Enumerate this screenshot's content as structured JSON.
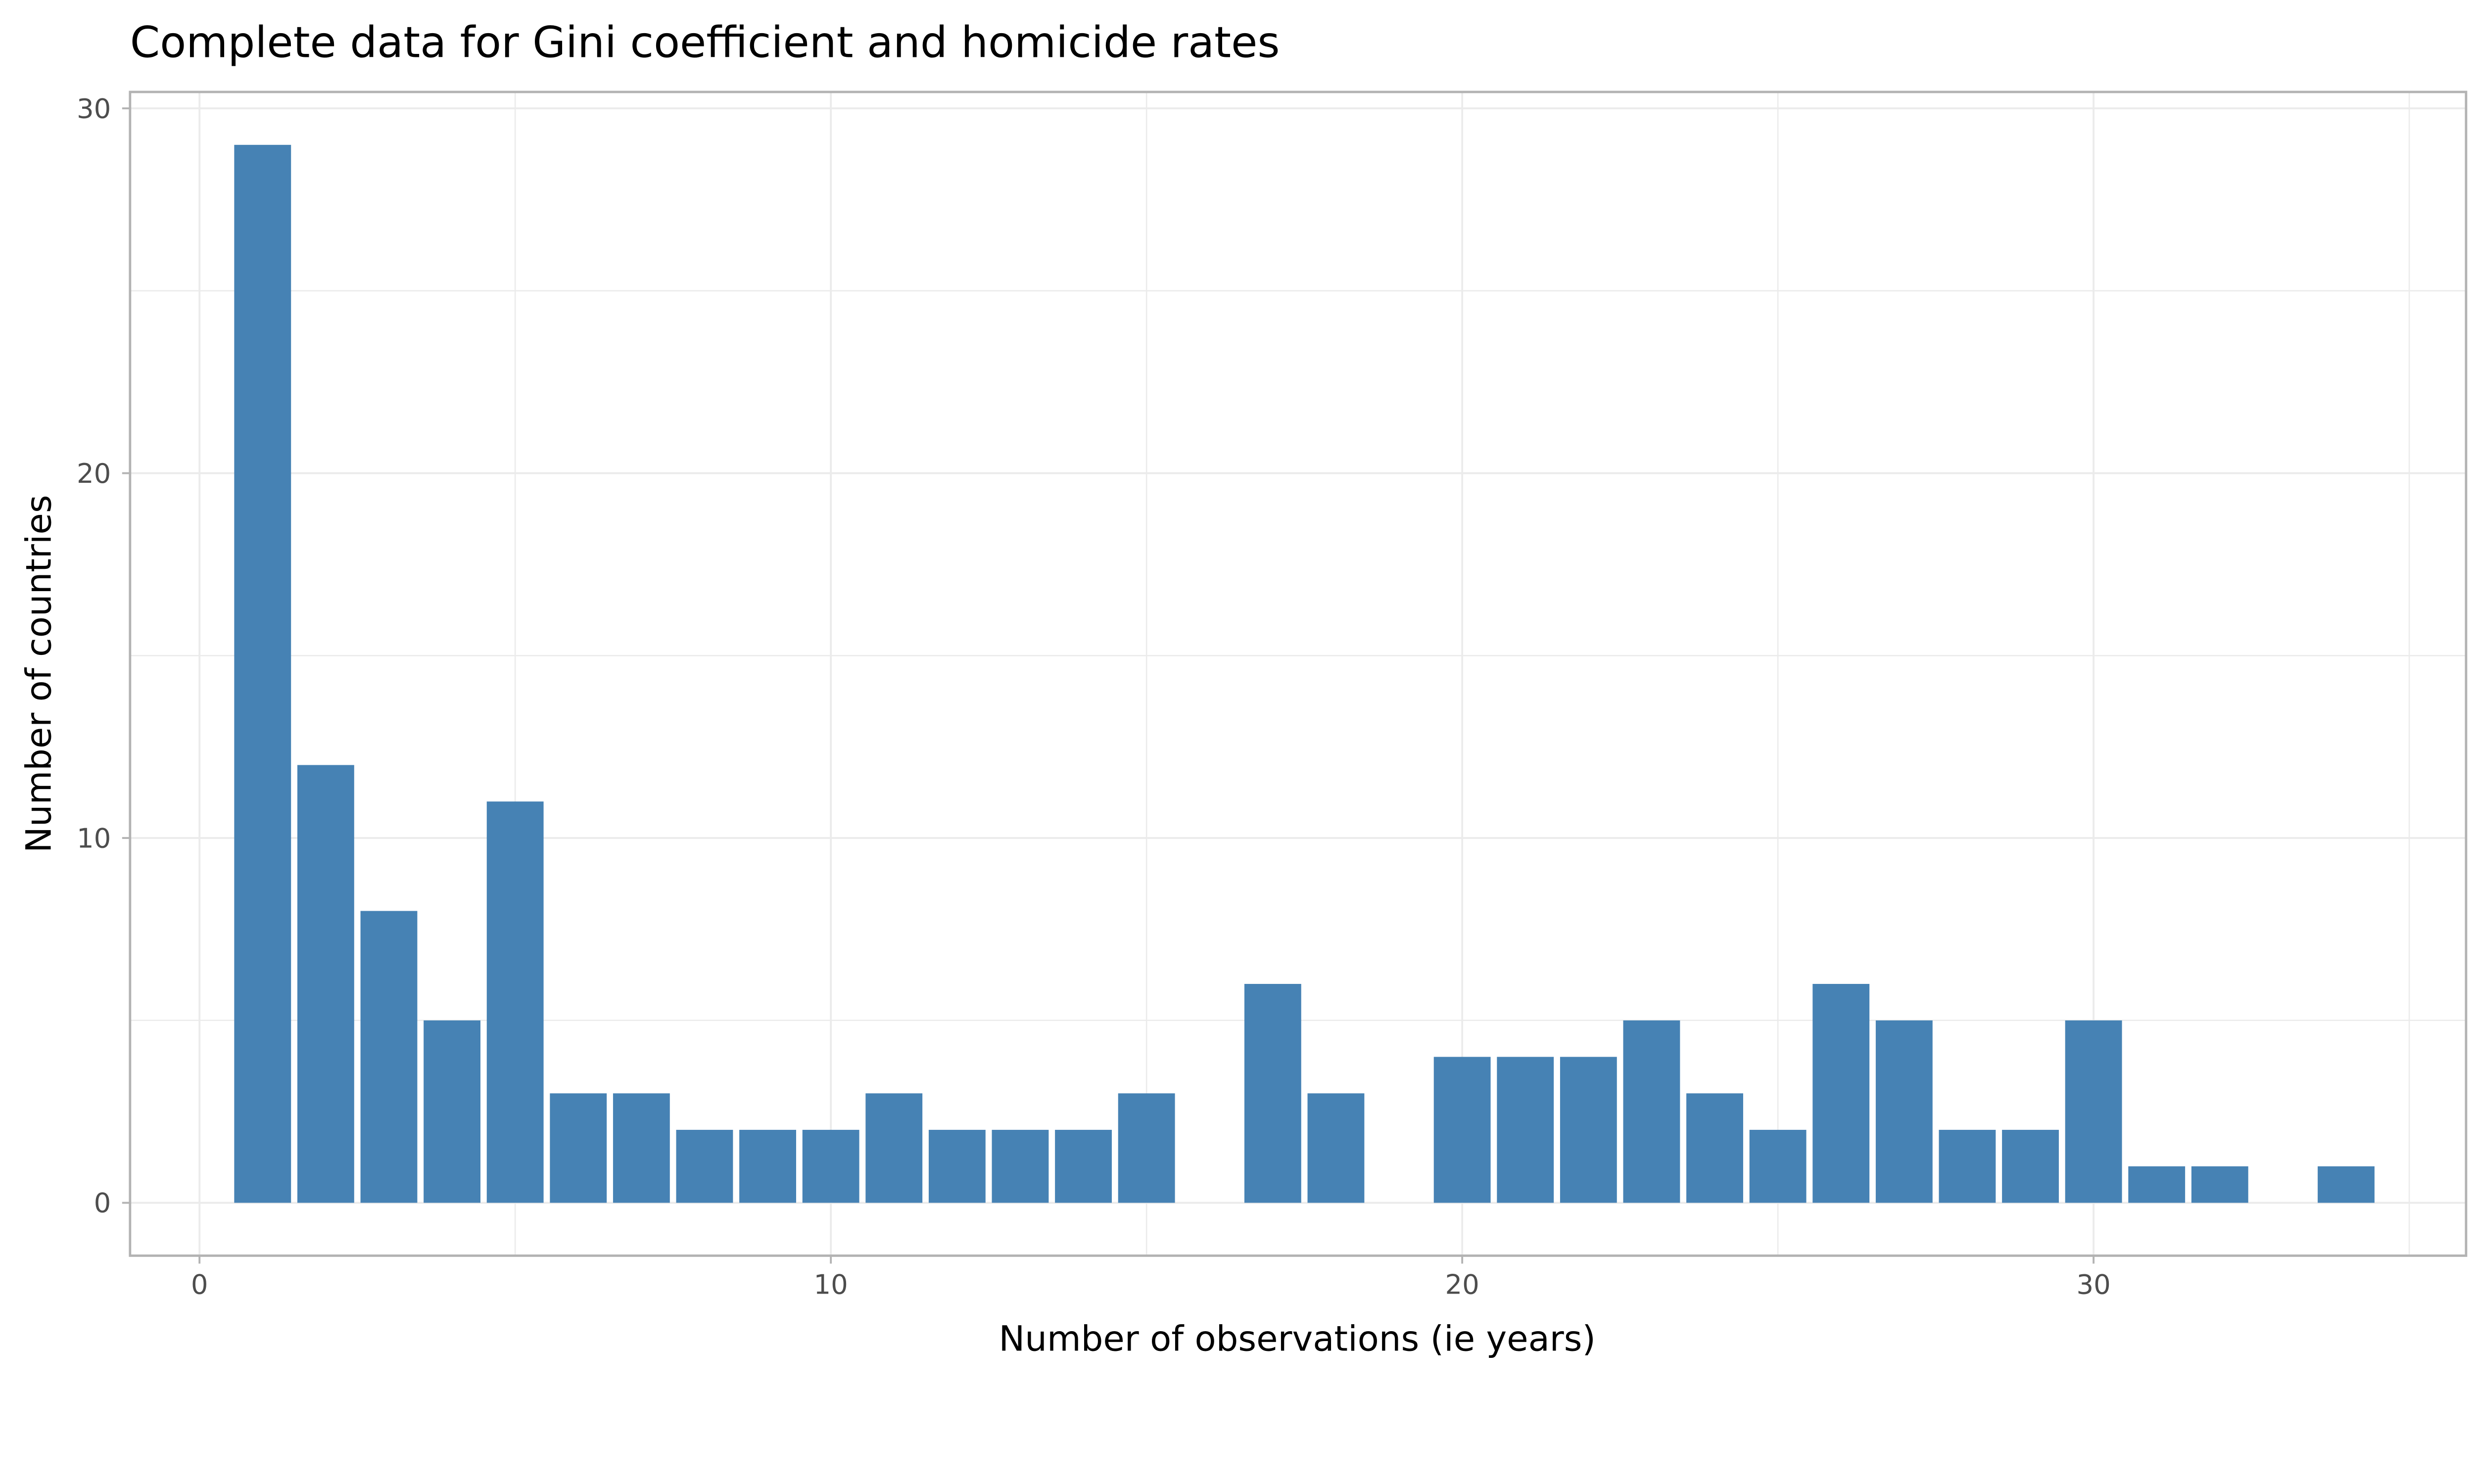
{
  "chart_data": {
    "type": "bar",
    "title": "Complete data for Gini coefficient and homicide rates",
    "xlabel": "Number of observations (ie years)",
    "ylabel": "Number of countries",
    "x": [
      1,
      2,
      3,
      4,
      5,
      6,
      7,
      8,
      9,
      10,
      11,
      12,
      13,
      14,
      15,
      16,
      17,
      18,
      19,
      20,
      21,
      22,
      23,
      24,
      25,
      26,
      27,
      28,
      29,
      30,
      31,
      32,
      33,
      34
    ],
    "values": [
      29,
      12,
      8,
      5,
      11,
      3,
      3,
      2,
      2,
      2,
      3,
      2,
      2,
      2,
      3,
      0,
      6,
      3,
      0,
      4,
      4,
      4,
      5,
      3,
      2,
      6,
      5,
      2,
      2,
      5,
      1,
      1,
      0,
      1
    ],
    "xlim": [
      -1.1,
      35.9
    ],
    "ylim": [
      -1.45,
      30.45
    ],
    "xticks": [
      "0",
      "10",
      "20",
      "30"
    ],
    "yticks": [
      "0",
      "10",
      "20",
      "30"
    ],
    "grid": true,
    "bar_color": "#4682B4"
  }
}
